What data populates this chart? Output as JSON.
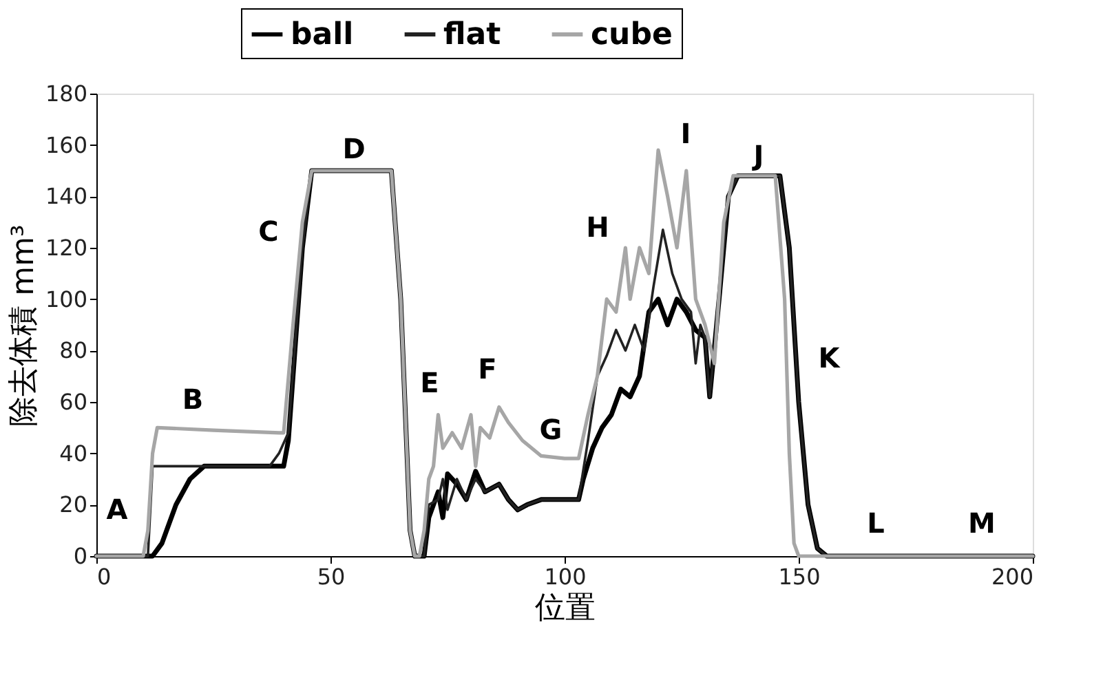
{
  "chart_data": {
    "type": "line",
    "xlabel": "位置",
    "ylabel": "除去体積 mm³",
    "xlim": [
      0,
      200
    ],
    "xticks": [
      0,
      50,
      100,
      150,
      200
    ],
    "ylim": [
      0,
      180
    ],
    "yticks": [
      0,
      20,
      40,
      60,
      80,
      100,
      120,
      140,
      160,
      180
    ],
    "grid": false,
    "legend": "top",
    "marker": "none",
    "line_style": "solid",
    "series": [
      {
        "name": "ball",
        "color": "#000000",
        "x": [
          0,
          12,
          14,
          17,
          20,
          23,
          39,
          40,
          41,
          44,
          46,
          63,
          65,
          67,
          68,
          70,
          71,
          72,
          73,
          74,
          75,
          77,
          79,
          81,
          83,
          86,
          88,
          90,
          92,
          95,
          100,
          103,
          104,
          106,
          108,
          110,
          112,
          114,
          116,
          118,
          120,
          122,
          124,
          126,
          128,
          130,
          131,
          133,
          135,
          137,
          146,
          148,
          150,
          152,
          154,
          156,
          200
        ],
        "values": [
          0,
          0,
          5,
          20,
          30,
          35,
          35,
          35,
          45,
          120,
          150,
          150,
          100,
          10,
          0,
          0,
          15,
          20,
          25,
          15,
          32,
          28,
          22,
          33,
          25,
          28,
          22,
          18,
          20,
          22,
          22,
          22,
          30,
          42,
          50,
          55,
          65,
          62,
          70,
          95,
          100,
          90,
          100,
          95,
          88,
          85,
          62,
          100,
          140,
          148,
          148,
          120,
          60,
          20,
          3,
          0,
          0
        ]
      },
      {
        "name": "flat",
        "color": "#222222",
        "x": [
          0,
          11,
          12,
          37,
          39,
          41,
          44,
          46,
          63,
          65,
          67,
          68,
          70,
          71,
          73,
          74,
          75,
          77,
          79,
          81,
          83,
          86,
          88,
          90,
          92,
          95,
          100,
          103,
          105,
          107,
          109,
          111,
          113,
          115,
          117,
          119,
          121,
          123,
          125,
          127,
          128,
          129,
          130,
          131,
          133,
          135,
          137,
          146,
          148,
          150,
          152,
          154,
          156,
          200
        ],
        "values": [
          0,
          0,
          35,
          35,
          40,
          48,
          120,
          150,
          150,
          100,
          10,
          0,
          0,
          20,
          22,
          30,
          18,
          30,
          22,
          30,
          25,
          28,
          22,
          18,
          20,
          22,
          22,
          22,
          45,
          70,
          78,
          88,
          80,
          90,
          80,
          105,
          127,
          110,
          100,
          95,
          75,
          90,
          85,
          62,
          100,
          140,
          148,
          148,
          120,
          60,
          20,
          3,
          0,
          0
        ]
      },
      {
        "name": "cube",
        "color": "#a6a6a6",
        "x": [
          0,
          10,
          11,
          12,
          13,
          25,
          39,
          40,
          42,
          44,
          46,
          63,
          65,
          67,
          68,
          69,
          70,
          71,
          72,
          73,
          74,
          76,
          78,
          80,
          81,
          82,
          84,
          86,
          88,
          91,
          95,
          100,
          103,
          105,
          107,
          109,
          111,
          113,
          114,
          116,
          118,
          120,
          122,
          124,
          126,
          128,
          130,
          132,
          134,
          136,
          145,
          147,
          148,
          149,
          150,
          200
        ],
        "values": [
          0,
          0,
          10,
          40,
          50,
          49,
          48,
          48,
          90,
          130,
          150,
          150,
          100,
          10,
          0,
          0,
          10,
          30,
          35,
          55,
          42,
          48,
          42,
          55,
          35,
          50,
          46,
          58,
          52,
          45,
          39,
          38,
          38,
          55,
          70,
          100,
          95,
          120,
          100,
          120,
          110,
          158,
          140,
          120,
          150,
          100,
          90,
          75,
          130,
          148,
          148,
          100,
          40,
          5,
          0,
          0
        ]
      }
    ],
    "annotations": [
      "A",
      "B",
      "C",
      "D",
      "E",
      "F",
      "G",
      "H",
      "I",
      "J",
      "K",
      "L",
      "M"
    ]
  }
}
